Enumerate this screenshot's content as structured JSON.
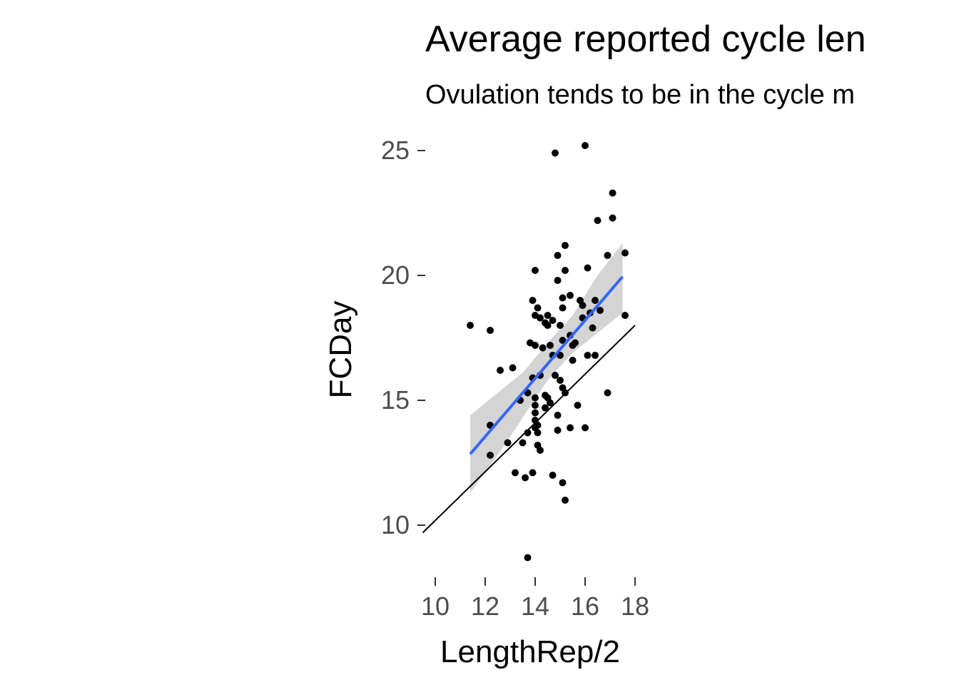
{
  "chart_data": {
    "type": "scatter",
    "title": "Average reported cycle len",
    "subtitle": "Ovulation tends to be in the cycle m",
    "xlabel": "LengthRep/2",
    "ylabel": "FCDay",
    "xlim": [
      9.5,
      18.2
    ],
    "ylim": [
      8.0,
      26.0
    ],
    "x_ticks": [
      10,
      12,
      14,
      16,
      18
    ],
    "y_ticks": [
      10,
      15,
      20,
      25
    ],
    "grid": false,
    "legend": "none",
    "colors": {
      "points": "#000000",
      "fit_line": "#3366ff",
      "ribbon": "#cccccc",
      "reference_line": "#000000"
    },
    "points": [
      [
        11.4,
        18.0
      ],
      [
        12.2,
        17.8
      ],
      [
        12.2,
        14.0
      ],
      [
        12.2,
        12.8
      ],
      [
        12.6,
        16.2
      ],
      [
        12.9,
        13.3
      ],
      [
        13.1,
        16.3
      ],
      [
        13.2,
        12.1
      ],
      [
        13.4,
        15.0
      ],
      [
        13.5,
        13.3
      ],
      [
        13.6,
        11.9
      ],
      [
        13.7,
        15.3
      ],
      [
        13.7,
        13.7
      ],
      [
        13.7,
        8.7
      ],
      [
        13.8,
        17.3
      ],
      [
        13.9,
        19.0
      ],
      [
        13.9,
        15.9
      ],
      [
        13.9,
        12.1
      ],
      [
        14.0,
        20.2
      ],
      [
        14.0,
        18.4
      ],
      [
        14.0,
        17.2
      ],
      [
        14.0,
        15.1
      ],
      [
        14.0,
        14.8
      ],
      [
        14.0,
        14.5
      ],
      [
        14.0,
        14.2
      ],
      [
        14.0,
        13.9
      ],
      [
        14.1,
        18.7
      ],
      [
        14.1,
        14.0
      ],
      [
        14.1,
        13.2
      ],
      [
        14.1,
        13.7
      ],
      [
        14.2,
        18.3
      ],
      [
        14.2,
        16.0
      ],
      [
        14.2,
        13.0
      ],
      [
        14.3,
        17.1
      ],
      [
        14.4,
        18.1
      ],
      [
        14.4,
        15.2
      ],
      [
        14.4,
        14.7
      ],
      [
        14.5,
        18.4
      ],
      [
        14.5,
        18.0
      ],
      [
        14.5,
        15.1
      ],
      [
        14.6,
        17.2
      ],
      [
        14.6,
        14.9
      ],
      [
        14.7,
        18.2
      ],
      [
        14.7,
        16.8
      ],
      [
        14.7,
        12.0
      ],
      [
        14.8,
        24.9
      ],
      [
        14.8,
        16.0
      ],
      [
        14.9,
        20.8
      ],
      [
        14.9,
        19.8
      ],
      [
        14.9,
        14.4
      ],
      [
        14.9,
        13.8
      ],
      [
        15.0,
        18.0
      ],
      [
        15.0,
        16.8
      ],
      [
        15.0,
        15.8
      ],
      [
        15.1,
        19.1
      ],
      [
        15.1,
        18.7
      ],
      [
        15.1,
        17.4
      ],
      [
        15.1,
        15.5
      ],
      [
        15.1,
        11.7
      ],
      [
        15.2,
        21.2
      ],
      [
        15.2,
        20.2
      ],
      [
        15.2,
        15.3
      ],
      [
        15.2,
        11.0
      ],
      [
        15.4,
        19.2
      ],
      [
        15.4,
        17.6
      ],
      [
        15.4,
        13.9
      ],
      [
        15.5,
        17.2
      ],
      [
        15.5,
        16.6
      ],
      [
        15.6,
        17.3
      ],
      [
        15.7,
        14.8
      ],
      [
        15.8,
        19.0
      ],
      [
        15.9,
        18.8
      ],
      [
        15.9,
        18.3
      ],
      [
        16.0,
        25.2
      ],
      [
        16.0,
        13.9
      ],
      [
        16.1,
        20.3
      ],
      [
        16.1,
        16.8
      ],
      [
        16.2,
        18.5
      ],
      [
        16.3,
        17.9
      ],
      [
        16.4,
        19.0
      ],
      [
        16.4,
        16.8
      ],
      [
        16.5,
        22.2
      ],
      [
        16.6,
        18.6
      ],
      [
        16.9,
        20.8
      ],
      [
        16.9,
        15.3
      ],
      [
        17.1,
        23.3
      ],
      [
        17.1,
        22.3
      ],
      [
        17.6,
        20.9
      ],
      [
        17.6,
        18.4
      ]
    ],
    "fit_line": {
      "x": [
        11.4,
        17.5
      ],
      "y": [
        12.85,
        19.95
      ]
    },
    "confidence_ribbon": {
      "x": [
        11.4,
        12.5,
        13.5,
        14.5,
        15.5,
        16.5,
        17.5
      ],
      "lower": [
        11.3,
        12.8,
        14.3,
        15.8,
        16.9,
        17.7,
        18.5
      ],
      "upper": [
        14.4,
        15.3,
        16.1,
        17.3,
        18.4,
        20.0,
        21.3
      ]
    },
    "reference_line": {
      "x": [
        9.5,
        18.0
      ],
      "y": [
        9.7,
        18.0
      ]
    }
  }
}
